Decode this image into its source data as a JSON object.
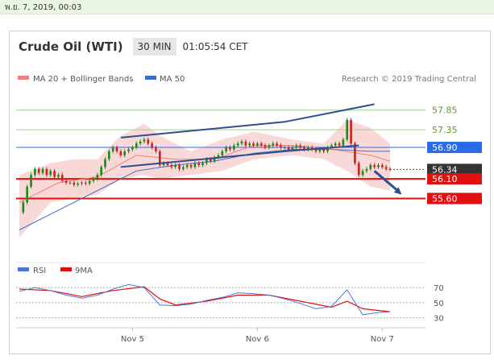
{
  "status_bar": {
    "datetime": "พ.ย. 7, 2019, 00:03"
  },
  "header": {
    "title": "Crude Oil (WTI)",
    "timeframe": "30 MIN",
    "time": "01:05:54 CET"
  },
  "legend": {
    "bb_label": "MA 20 + Bollinger Bands",
    "ma50_label": "MA 50",
    "credit": "Research © 2019 Trading Central"
  },
  "rsi_legend": {
    "rsi_label": "RSI",
    "ma_label": "9MA"
  },
  "colors": {
    "candle_up": "#1a8c1a",
    "candle_down": "#cc2222",
    "ma20": "#f08080",
    "band_fill": "#f6c8c8",
    "ma50": "#3a6fc4",
    "trendline": "#2f4f8f",
    "support": "#e01010",
    "pivot": "#2a6be8",
    "resistance": "#9bd48a",
    "rsi": "#4a78d8",
    "rsi_ma": "#e01010"
  },
  "chart_data": [
    {
      "type": "candlestick",
      "title": "Crude Oil (WTI)",
      "timeframe": "30 MIN",
      "x_tick_labels": [
        "Nov 5",
        "Nov 6",
        "Nov 7"
      ],
      "ylim": [
        54.4,
        58.5
      ],
      "levels": [
        {
          "label": "57.85",
          "value": 57.85,
          "kind": "resistance"
        },
        {
          "label": "57.35",
          "value": 57.35,
          "kind": "resistance"
        },
        {
          "label": "56.90",
          "value": 56.9,
          "kind": "pivot"
        },
        {
          "label": "56.34",
          "value": 56.34,
          "kind": "last"
        },
        {
          "label": "56.10",
          "value": 56.1,
          "kind": "support"
        },
        {
          "label": "55.60",
          "value": 55.6,
          "kind": "support"
        }
      ],
      "close_path": [
        [
          0,
          55.25
        ],
        [
          1,
          55.5
        ],
        [
          2,
          55.9
        ],
        [
          3,
          56.2
        ],
        [
          4,
          56.35
        ],
        [
          5,
          56.25
        ],
        [
          6,
          56.35
        ],
        [
          7,
          56.2
        ],
        [
          8,
          56.3
        ],
        [
          9,
          56.15
        ],
        [
          10,
          56.2
        ],
        [
          11,
          56.05
        ],
        [
          12,
          56.0
        ],
        [
          13,
          56.0
        ],
        [
          14,
          55.95
        ],
        [
          15,
          55.98
        ],
        [
          16,
          56.0
        ],
        [
          17,
          55.98
        ],
        [
          18,
          56.05
        ],
        [
          19,
          56.1
        ],
        [
          20,
          56.2
        ],
        [
          21,
          56.4
        ],
        [
          22,
          56.6
        ],
        [
          23,
          56.8
        ],
        [
          24,
          56.9
        ],
        [
          25,
          56.8
        ],
        [
          26,
          56.7
        ],
        [
          27,
          56.8
        ],
        [
          28,
          56.85
        ],
        [
          29,
          56.9
        ],
        [
          30,
          57.0
        ],
        [
          31,
          57.05
        ],
        [
          32,
          57.1
        ],
        [
          33,
          57.0
        ],
        [
          34,
          56.9
        ],
        [
          35,
          56.8
        ],
        [
          36,
          56.45
        ],
        [
          37,
          56.5
        ],
        [
          38,
          56.45
        ],
        [
          39,
          56.4
        ],
        [
          40,
          56.45
        ],
        [
          41,
          56.35
        ],
        [
          42,
          56.4
        ],
        [
          43,
          56.45
        ],
        [
          44,
          56.4
        ],
        [
          45,
          56.5
        ],
        [
          46,
          56.45
        ],
        [
          47,
          56.5
        ],
        [
          48,
          56.6
        ],
        [
          49,
          56.55
        ],
        [
          50,
          56.65
        ],
        [
          51,
          56.7
        ],
        [
          52,
          56.8
        ],
        [
          53,
          56.9
        ],
        [
          54,
          56.85
        ],
        [
          55,
          56.95
        ],
        [
          56,
          57.0
        ],
        [
          57,
          57.05
        ],
        [
          58,
          56.95
        ],
        [
          59,
          57.0
        ],
        [
          60,
          56.95
        ],
        [
          61,
          57.0
        ],
        [
          62,
          56.95
        ],
        [
          63,
          56.9
        ],
        [
          64,
          56.95
        ],
        [
          65,
          57.0
        ],
        [
          66,
          56.95
        ],
        [
          67,
          56.9
        ],
        [
          68,
          56.9
        ],
        [
          69,
          56.85
        ],
        [
          70,
          56.9
        ],
        [
          71,
          56.95
        ],
        [
          72,
          56.9
        ],
        [
          73,
          56.85
        ],
        [
          74,
          56.9
        ],
        [
          75,
          56.85
        ],
        [
          76,
          56.8
        ],
        [
          77,
          56.85
        ],
        [
          78,
          56.8
        ],
        [
          79,
          56.9
        ],
        [
          80,
          56.95
        ],
        [
          81,
          57.0
        ],
        [
          82,
          56.95
        ],
        [
          83,
          57.1
        ],
        [
          84,
          57.6
        ],
        [
          85,
          57.0
        ],
        [
          86,
          56.5
        ],
        [
          87,
          56.2
        ],
        [
          88,
          56.3
        ],
        [
          89,
          56.35
        ],
        [
          90,
          56.45
        ],
        [
          91,
          56.4
        ],
        [
          92,
          56.45
        ],
        [
          93,
          56.4
        ],
        [
          94,
          56.35
        ],
        [
          95,
          56.34
        ]
      ],
      "ma20_path": [
        [
          0,
          55.5
        ],
        [
          10,
          56.0
        ],
        [
          20,
          56.15
        ],
        [
          30,
          56.7
        ],
        [
          40,
          56.6
        ],
        [
          50,
          56.6
        ],
        [
          60,
          56.95
        ],
        [
          70,
          56.95
        ],
        [
          80,
          56.85
        ],
        [
          90,
          56.7
        ],
        [
          95,
          56.55
        ]
      ],
      "ma50_path": [
        [
          0,
          54.8
        ],
        [
          10,
          55.3
        ],
        [
          20,
          55.8
        ],
        [
          30,
          56.3
        ],
        [
          40,
          56.45
        ],
        [
          50,
          56.55
        ],
        [
          60,
          56.75
        ],
        [
          70,
          56.85
        ],
        [
          80,
          56.85
        ],
        [
          90,
          56.8
        ],
        [
          95,
          56.8
        ]
      ],
      "bb_upper_path": [
        [
          0,
          56.2
        ],
        [
          8,
          56.5
        ],
        [
          14,
          56.6
        ],
        [
          20,
          56.6
        ],
        [
          26,
          57.2
        ],
        [
          32,
          57.5
        ],
        [
          36,
          57.2
        ],
        [
          44,
          56.8
        ],
        [
          52,
          57.1
        ],
        [
          60,
          57.3
        ],
        [
          70,
          57.1
        ],
        [
          78,
          57.0
        ],
        [
          84,
          57.6
        ],
        [
          90,
          57.4
        ],
        [
          95,
          57.0
        ]
      ],
      "bb_lower_path": [
        [
          0,
          54.6
        ],
        [
          8,
          55.5
        ],
        [
          14,
          55.6
        ],
        [
          20,
          55.7
        ],
        [
          26,
          56.1
        ],
        [
          32,
          56.2
        ],
        [
          36,
          56.1
        ],
        [
          44,
          56.2
        ],
        [
          52,
          56.3
        ],
        [
          60,
          56.6
        ],
        [
          70,
          56.7
        ],
        [
          78,
          56.6
        ],
        [
          84,
          56.3
        ],
        [
          90,
          55.9
        ],
        [
          95,
          55.8
        ]
      ],
      "trend_channel": {
        "upper": [
          [
            26,
            57.15
          ],
          [
            68,
            57.55
          ],
          [
            91,
            58.0
          ]
        ],
        "lower": [
          [
            26,
            56.4
          ],
          [
            68,
            56.8
          ],
          [
            87,
            56.95
          ]
        ]
      },
      "forecast_arrow": [
        [
          91,
          56.3
        ],
        [
          98,
          55.7
        ]
      ]
    },
    {
      "type": "line",
      "title": "RSI",
      "ylim": [
        20,
        85
      ],
      "y_tick_labels": [
        "70",
        "50",
        "30"
      ],
      "rsi_path": [
        [
          0,
          65
        ],
        [
          4,
          70
        ],
        [
          8,
          66
        ],
        [
          12,
          60
        ],
        [
          16,
          56
        ],
        [
          20,
          60
        ],
        [
          24,
          68
        ],
        [
          28,
          74
        ],
        [
          32,
          70
        ],
        [
          36,
          47
        ],
        [
          40,
          46
        ],
        [
          44,
          48
        ],
        [
          48,
          53
        ],
        [
          52,
          57
        ],
        [
          56,
          63
        ],
        [
          60,
          62
        ],
        [
          64,
          60
        ],
        [
          68,
          55
        ],
        [
          72,
          49
        ],
        [
          76,
          42
        ],
        [
          80,
          45
        ],
        [
          84,
          67
        ],
        [
          88,
          34
        ],
        [
          92,
          37
        ],
        [
          95,
          38
        ]
      ],
      "rsi_ma_path": [
        [
          0,
          68
        ],
        [
          8,
          66
        ],
        [
          16,
          58
        ],
        [
          24,
          66
        ],
        [
          32,
          71
        ],
        [
          36,
          55
        ],
        [
          40,
          47
        ],
        [
          48,
          52
        ],
        [
          56,
          60
        ],
        [
          64,
          60
        ],
        [
          72,
          52
        ],
        [
          80,
          44
        ],
        [
          84,
          52
        ],
        [
          88,
          42
        ],
        [
          95,
          38
        ]
      ]
    }
  ]
}
